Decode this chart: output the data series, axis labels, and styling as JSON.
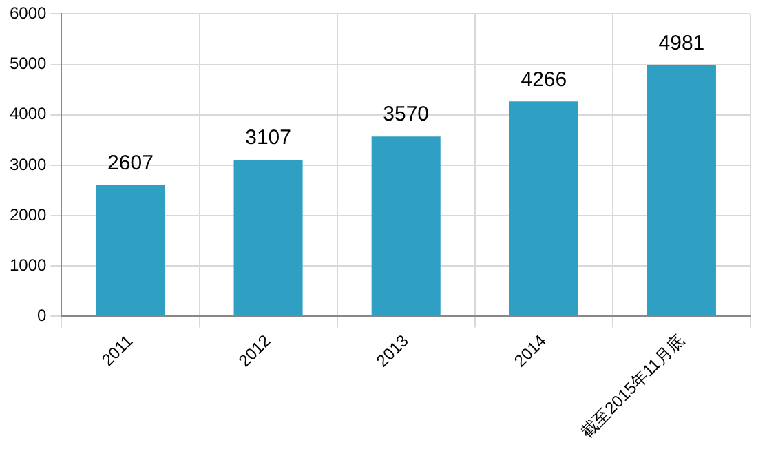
{
  "chart_data": {
    "type": "bar",
    "categories": [
      "2011",
      "2012",
      "2013",
      "2014",
      "截至2015年11月底"
    ],
    "values": [
      2607,
      3107,
      3570,
      4266,
      4981
    ],
    "color": "#2f9fc4",
    "ylim": [
      0,
      6000
    ],
    "yticks": [
      0,
      1000,
      2000,
      3000,
      4000,
      5000,
      6000
    ],
    "grid": true,
    "data_labels": true
  }
}
